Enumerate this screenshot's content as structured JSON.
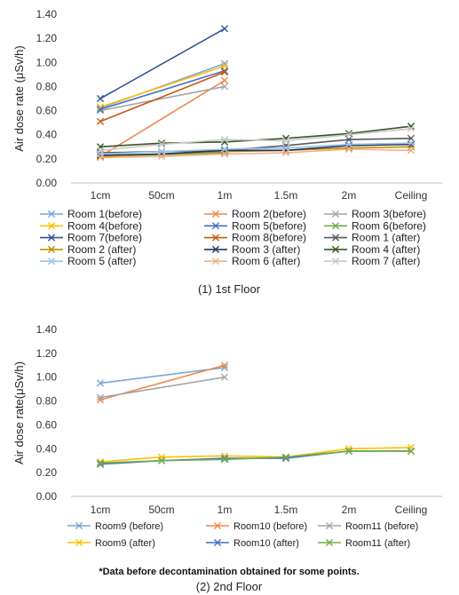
{
  "chart_data": [
    {
      "type": "line",
      "caption": "(1) 1st Floor",
      "ylabel": "Air dose rate (μSv/h)",
      "ylim": [
        0,
        1.4
      ],
      "yticks": [
        "0.00",
        "0.20",
        "0.40",
        "0.60",
        "0.80",
        "1.00",
        "1.20",
        "1.40"
      ],
      "categories": [
        "1cm",
        "50cm",
        "1m",
        "1.5m",
        "2m",
        "Ceiling"
      ],
      "grid": false,
      "legend_position": "bottom",
      "series": [
        {
          "name": "Room 1(before)",
          "color": "#7AA6D8",
          "values": [
            0.62,
            null,
            0.99,
            null,
            null,
            null
          ]
        },
        {
          "name": "Room 2(before)",
          "color": "#F0874A",
          "values": [
            0.22,
            null,
            0.85,
            null,
            null,
            null
          ]
        },
        {
          "name": "Room 3(before)",
          "color": "#A6A6A6",
          "values": [
            0.6,
            null,
            0.8,
            null,
            null,
            null
          ]
        },
        {
          "name": "Room 4(before)",
          "color": "#FFC000",
          "values": [
            0.63,
            null,
            0.97,
            null,
            null,
            null
          ]
        },
        {
          "name": "Room 5(before)",
          "color": "#4472C4",
          "values": [
            0.61,
            null,
            0.93,
            null,
            null,
            null
          ]
        },
        {
          "name": "Room 6(before)",
          "color": "#70AD47",
          "values": [
            0.22,
            null,
            0.25,
            null,
            null,
            null
          ]
        },
        {
          "name": "Room 7(before)",
          "color": "#2F5597",
          "values": [
            0.7,
            null,
            1.28,
            null,
            null,
            null
          ]
        },
        {
          "name": "Room 8(before)",
          "color": "#C55A11",
          "values": [
            0.51,
            null,
            0.92,
            null,
            null,
            null
          ]
        },
        {
          "name": "Room 1 (after)",
          "color": "#595959",
          "values": [
            0.25,
            0.26,
            0.27,
            0.31,
            0.36,
            0.37
          ]
        },
        {
          "name": "Room 2 (after)",
          "color": "#BF9000",
          "values": [
            0.22,
            0.24,
            0.26,
            0.27,
            0.29,
            0.3
          ]
        },
        {
          "name": "Room 3 (after)",
          "color": "#1F3864",
          "values": [
            0.23,
            0.24,
            0.27,
            0.27,
            0.31,
            0.32
          ]
        },
        {
          "name": "Room 4 (after)",
          "color": "#375623",
          "values": [
            0.3,
            0.33,
            0.34,
            0.37,
            0.41,
            0.47
          ]
        },
        {
          "name": "Room 5 (after)",
          "color": "#9DC3E6",
          "values": [
            0.24,
            0.26,
            0.28,
            0.29,
            0.32,
            0.33
          ]
        },
        {
          "name": "Room 6 (after)",
          "color": "#F4B183",
          "values": [
            0.21,
            0.22,
            0.24,
            0.25,
            0.28,
            0.27
          ]
        },
        {
          "name": "Room 7 (after)",
          "color": "#C9C9C9",
          "values": [
            0.27,
            0.32,
            0.36,
            0.35,
            0.4,
            0.45
          ]
        }
      ]
    },
    {
      "type": "line",
      "caption": "(2) 2nd Floor",
      "ylabel": "Air dose rate(μSv/h)",
      "ylim": [
        0,
        1.4
      ],
      "yticks": [
        "0.00",
        "0.20",
        "0.40",
        "0.60",
        "0.80",
        "1.00",
        "1.20",
        "1.40"
      ],
      "categories": [
        "1cm",
        "50cm",
        "1m",
        "1.5m",
        "2m",
        "Ceiling"
      ],
      "grid": false,
      "legend_position": "bottom",
      "series": [
        {
          "name": "Room9 (before)",
          "color": "#7AA6D8",
          "values": [
            0.95,
            null,
            1.08,
            null,
            null,
            null
          ]
        },
        {
          "name": "Room10 (before)",
          "color": "#F0874A",
          "values": [
            0.81,
            null,
            1.1,
            null,
            null,
            null
          ]
        },
        {
          "name": "Room11 (before)",
          "color": "#A6A6A6",
          "values": [
            0.83,
            null,
            1.0,
            null,
            null,
            null
          ]
        },
        {
          "name": "Room9 (after)",
          "color": "#FFC000",
          "values": [
            0.29,
            0.33,
            0.34,
            0.33,
            0.4,
            0.41
          ]
        },
        {
          "name": "Room10 (after)",
          "color": "#4472C4",
          "values": [
            0.27,
            0.3,
            0.32,
            0.32,
            0.38,
            0.38
          ]
        },
        {
          "name": "Room11 (after)",
          "color": "#70AD47",
          "values": [
            0.28,
            0.3,
            0.31,
            0.33,
            0.38,
            0.38
          ]
        }
      ]
    }
  ],
  "note": "*Data before decontamination obtained for some points."
}
